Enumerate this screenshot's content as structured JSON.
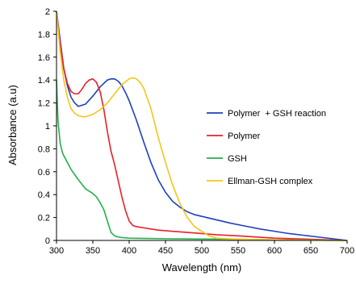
{
  "chart_data": {
    "type": "line",
    "title": "",
    "xlabel": "Wavelength (nm)",
    "ylabel": "Absorbance (a.u)",
    "xlim": [
      300,
      700
    ],
    "ylim": [
      0,
      2
    ],
    "x_ticks": [
      300,
      350,
      400,
      450,
      500,
      550,
      600,
      650,
      700
    ],
    "y_ticks": [
      0,
      0.2,
      0.4,
      0.6,
      0.8,
      1,
      1.2,
      1.4,
      1.6,
      1.8,
      2
    ],
    "x_tick_labels": [
      "300",
      "350",
      "400",
      "450",
      "500",
      "550",
      "600",
      "650",
      "700"
    ],
    "y_tick_labels": [
      "0",
      "0.2",
      "0.4",
      "0.6",
      "0.8",
      "1",
      "1.2",
      "1.4",
      "1.6",
      "1.8",
      "2"
    ],
    "grid": false,
    "legend_position": "right",
    "series": [
      {
        "name": "Polymer  + GSH reaction",
        "color": "#1f3fbf",
        "x": [
          300,
          305,
          310,
          315,
          320,
          325,
          330,
          340,
          350,
          360,
          370,
          375,
          380,
          385,
          390,
          395,
          400,
          410,
          420,
          430,
          440,
          450,
          460,
          470,
          480,
          490,
          500,
          520,
          540,
          560,
          580,
          600,
          620,
          640,
          660,
          680,
          700
        ],
        "y": [
          2.0,
          1.75,
          1.5,
          1.35,
          1.25,
          1.2,
          1.17,
          1.19,
          1.26,
          1.34,
          1.4,
          1.41,
          1.41,
          1.39,
          1.35,
          1.29,
          1.22,
          1.05,
          0.86,
          0.68,
          0.53,
          0.42,
          0.34,
          0.29,
          0.25,
          0.225,
          0.21,
          0.18,
          0.15,
          0.125,
          0.1,
          0.08,
          0.06,
          0.045,
          0.03,
          0.015,
          0.0
        ]
      },
      {
        "name": "Polymer",
        "color": "#e8202a",
        "x": [
          300,
          305,
          310,
          315,
          320,
          325,
          330,
          335,
          340,
          345,
          350,
          355,
          360,
          365,
          370,
          375,
          380,
          385,
          390,
          395,
          400,
          405,
          410,
          420,
          430,
          440,
          460,
          480,
          500,
          520,
          550,
          600,
          650,
          700
        ],
        "y": [
          2.0,
          1.72,
          1.5,
          1.37,
          1.3,
          1.28,
          1.28,
          1.32,
          1.37,
          1.4,
          1.41,
          1.38,
          1.3,
          1.15,
          0.95,
          0.78,
          0.66,
          0.52,
          0.38,
          0.26,
          0.17,
          0.13,
          0.12,
          0.11,
          0.1,
          0.09,
          0.08,
          0.07,
          0.06,
          0.05,
          0.04,
          0.02,
          0.01,
          0.0
        ]
      },
      {
        "name": "GSH",
        "color": "#22b14c",
        "x": [
          300,
          302,
          305,
          308,
          310,
          315,
          320,
          330,
          340,
          350,
          355,
          360,
          365,
          370,
          375,
          380,
          385,
          390,
          400,
          420,
          450,
          500,
          550,
          600,
          650,
          700
        ],
        "y": [
          1.4,
          1.05,
          0.85,
          0.77,
          0.74,
          0.68,
          0.62,
          0.53,
          0.45,
          0.41,
          0.38,
          0.33,
          0.27,
          0.17,
          0.07,
          0.04,
          0.03,
          0.025,
          0.02,
          0.018,
          0.015,
          0.012,
          0.01,
          0.005,
          0.003,
          0.0
        ]
      },
      {
        "name": "Ellman-GSH complex",
        "color": "#f5c518",
        "x": [
          300,
          305,
          310,
          315,
          320,
          325,
          330,
          335,
          340,
          345,
          350,
          355,
          360,
          370,
          380,
          390,
          400,
          405,
          410,
          415,
          420,
          430,
          440,
          450,
          460,
          470,
          480,
          490,
          500,
          510,
          520,
          550,
          600,
          650,
          700
        ],
        "y": [
          2.0,
          1.65,
          1.4,
          1.25,
          1.15,
          1.11,
          1.09,
          1.08,
          1.08,
          1.09,
          1.1,
          1.12,
          1.14,
          1.2,
          1.28,
          1.36,
          1.41,
          1.42,
          1.41,
          1.38,
          1.33,
          1.15,
          0.9,
          0.68,
          0.48,
          0.32,
          0.2,
          0.12,
          0.08,
          0.04,
          0.02,
          0.01,
          0.005,
          0.002,
          0.0
        ]
      }
    ]
  }
}
